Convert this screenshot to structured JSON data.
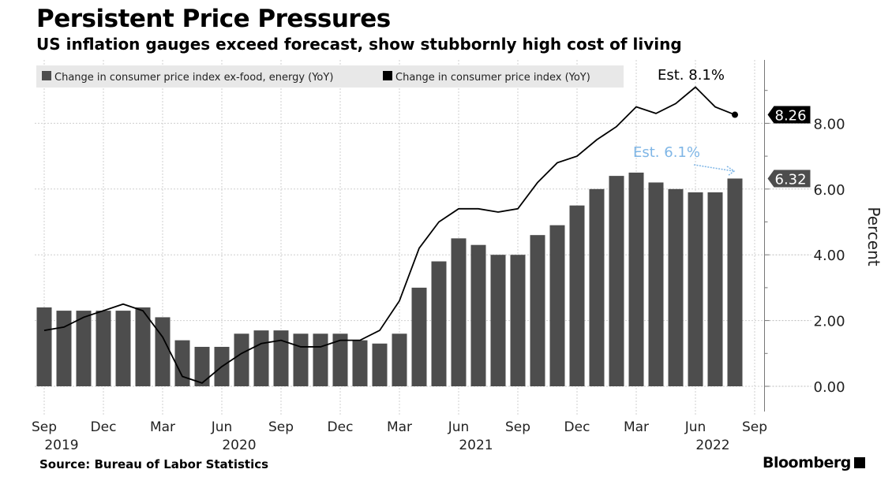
{
  "header": {
    "title": "Persistent Price Pressures",
    "subtitle": "US inflation gauges exceed forecast, show stubbornly high cost of living"
  },
  "footer": {
    "source": "Source: Bureau of Labor Statistics",
    "brand": "Bloomberg"
  },
  "chart_data": {
    "type": "bar+line",
    "title": "Persistent Price Pressures",
    "ylabel": "Percent",
    "ylim": [
      -0.8,
      10
    ],
    "yticks": [
      "0.00",
      "2.00",
      "4.00",
      "6.00",
      "8.00"
    ],
    "ytick_values": [
      0,
      2,
      4,
      6,
      8
    ],
    "grid": true,
    "legend_position": "top-left",
    "x": [
      "Sep 2019",
      "Oct 2019",
      "Nov 2019",
      "Dec 2019",
      "Jan 2020",
      "Feb 2020",
      "Mar 2020",
      "Apr 2020",
      "May 2020",
      "Jun 2020",
      "Jul 2020",
      "Aug 2020",
      "Sep 2020",
      "Oct 2020",
      "Nov 2020",
      "Dec 2020",
      "Jan 2021",
      "Feb 2021",
      "Mar 2021",
      "Apr 2021",
      "May 2021",
      "Jun 2021",
      "Jul 2021",
      "Aug 2021",
      "Sep 2021",
      "Oct 2021",
      "Nov 2021",
      "Dec 2021",
      "Jan 2022",
      "Feb 2022",
      "Mar 2022",
      "Apr 2022",
      "May 2022",
      "Jun 2022",
      "Jul 2022",
      "Aug 2022"
    ],
    "xticks": [
      {
        "i": 0,
        "label": "Sep",
        "year": "2019"
      },
      {
        "i": 3,
        "label": "Dec"
      },
      {
        "i": 6,
        "label": "Mar"
      },
      {
        "i": 9,
        "label": "Jun",
        "year": "2020"
      },
      {
        "i": 12,
        "label": "Sep"
      },
      {
        "i": 15,
        "label": "Dec"
      },
      {
        "i": 18,
        "label": "Mar"
      },
      {
        "i": 21,
        "label": "Jun",
        "year": "2021"
      },
      {
        "i": 24,
        "label": "Sep"
      },
      {
        "i": 27,
        "label": "Dec"
      },
      {
        "i": 30,
        "label": "Mar"
      },
      {
        "i": 33,
        "label": "Jun",
        "year": "2022"
      },
      {
        "i": 36,
        "label": "Sep"
      }
    ],
    "series": [
      {
        "name": "Change in consumer price index ex-food, energy (YoY)",
        "type": "bar",
        "color": "#4d4d4d",
        "values": [
          2.4,
          2.3,
          2.3,
          2.3,
          2.3,
          2.4,
          2.1,
          1.4,
          1.2,
          1.2,
          1.6,
          1.7,
          1.7,
          1.6,
          1.6,
          1.6,
          1.4,
          1.3,
          1.6,
          3.0,
          3.8,
          4.5,
          4.3,
          4.0,
          4.0,
          4.6,
          4.9,
          5.5,
          6.0,
          6.4,
          6.5,
          6.2,
          6.0,
          5.9,
          5.9,
          6.32
        ],
        "last_label": "6.32"
      },
      {
        "name": "Change in consumer price index (YoY)",
        "type": "line",
        "color": "#000000",
        "values": [
          1.7,
          1.8,
          2.1,
          2.3,
          2.5,
          2.3,
          1.5,
          0.3,
          0.1,
          0.6,
          1.0,
          1.3,
          1.4,
          1.2,
          1.2,
          1.4,
          1.4,
          1.7,
          2.6,
          4.2,
          5.0,
          5.4,
          5.4,
          5.3,
          5.4,
          6.2,
          6.8,
          7.0,
          7.5,
          7.9,
          8.5,
          8.3,
          8.6,
          9.1,
          8.5,
          8.26
        ],
        "last_label": "8.26"
      }
    ],
    "annotations": [
      {
        "text": "Est. 8.1%",
        "color": "#000000"
      },
      {
        "text": "Est. 6.1%",
        "color": "#7fb6e6"
      }
    ]
  }
}
